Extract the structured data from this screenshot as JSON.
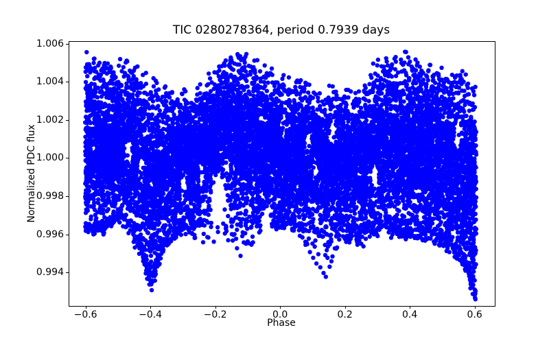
{
  "figure": {
    "background": "#ffffff",
    "text_color": "#000000"
  },
  "chart_data": {
    "type": "scatter",
    "title": "TIC 0280278364, period 0.7939 days",
    "xlabel": "Phase",
    "ylabel": "Normalized PDC flux",
    "xlim": [
      -0.652,
      0.66
    ],
    "ylim": [
      0.99227,
      1.00614
    ],
    "grid": false,
    "legend_position": "none",
    "marker": {
      "color": "#0000ff",
      "radius_px": 3.2,
      "shape": "circle"
    },
    "xticks": [
      {
        "v": -0.6,
        "label": "−0.6"
      },
      {
        "v": -0.4,
        "label": "−0.4"
      },
      {
        "v": -0.2,
        "label": "−0.2"
      },
      {
        "v": 0.0,
        "label": "0.0"
      },
      {
        "v": 0.2,
        "label": "0.2"
      },
      {
        "v": 0.4,
        "label": "0.4"
      },
      {
        "v": 0.6,
        "label": "0.6"
      }
    ],
    "yticks": [
      {
        "v": 0.994,
        "label": "0.994"
      },
      {
        "v": 0.996,
        "label": "0.996"
      },
      {
        "v": 0.998,
        "label": "0.998"
      },
      {
        "v": 1.0,
        "label": "1.000"
      },
      {
        "v": 1.002,
        "label": "1.002"
      },
      {
        "v": 1.004,
        "label": "1.004"
      },
      {
        "v": 1.006,
        "label": "1.006"
      }
    ],
    "phase_range": [
      -0.603,
      0.603
    ],
    "n_points": 13000,
    "seed": 42,
    "fractions": {
      "band": 0.87,
      "below_band": 0.09,
      "above_band": 0.04
    },
    "jitter_sigma": 0.00022,
    "envelopes": {
      "phases": [
        -0.603,
        -0.58,
        -0.55,
        -0.5,
        -0.47,
        -0.44,
        -0.42,
        -0.4,
        -0.38,
        -0.36,
        -0.33,
        -0.3,
        -0.27,
        -0.24,
        -0.21,
        -0.18,
        -0.15,
        -0.12,
        -0.09,
        -0.06,
        -0.03,
        0.0,
        0.03,
        0.06,
        0.09,
        0.12,
        0.15,
        0.18,
        0.21,
        0.24,
        0.27,
        0.3,
        0.33,
        0.36,
        0.4,
        0.44,
        0.48,
        0.52,
        0.55,
        0.57,
        0.59,
        0.603
      ],
      "upper": [
        1.0044,
        1.0043,
        1.0042,
        1.0043,
        1.0042,
        1.0038,
        1.0035,
        1.0033,
        1.0031,
        1.0029,
        1.0027,
        1.0026,
        1.0023,
        1.0032,
        1.004,
        1.0044,
        1.0046,
        1.0046,
        1.0043,
        1.004,
        1.0037,
        1.0035,
        1.0034,
        1.0033,
        1.0031,
        1.0029,
        1.0027,
        1.0026,
        1.0027,
        1.0029,
        1.0034,
        1.004,
        1.0043,
        1.0045,
        1.0044,
        1.0042,
        1.0039,
        1.0037,
        1.0036,
        1.0034,
        1.0032,
        1.0031
      ],
      "band_bottom": [
        0.9966,
        0.9965,
        0.9966,
        0.9972,
        0.997,
        0.9962,
        0.995,
        0.9938,
        0.995,
        0.9958,
        0.9964,
        0.9968,
        0.997,
        0.9974,
        0.9982,
        0.9985,
        0.9982,
        0.9976,
        0.9974,
        0.9972,
        0.9971,
        0.997,
        0.9969,
        0.9969,
        0.9971,
        0.9972,
        0.9966,
        0.9967,
        0.9966,
        0.9965,
        0.9967,
        0.9971,
        0.9969,
        0.9967,
        0.9966,
        0.9966,
        0.9963,
        0.9959,
        0.9953,
        0.9947,
        0.9937,
        0.993
      ],
      "sparse_low": [
        0.9961,
        0.996,
        0.9959,
        0.9966,
        0.996,
        0.995,
        0.9941,
        0.9931,
        0.9941,
        0.995,
        0.9957,
        0.9959,
        0.9955,
        0.995,
        0.9951,
        0.995,
        0.995,
        0.9949,
        0.9952,
        0.9958,
        0.9961,
        0.9962,
        0.996,
        0.9956,
        0.995,
        0.9943,
        0.994,
        0.9952,
        0.9955,
        0.9953,
        0.9955,
        0.9958,
        0.9957,
        0.9956,
        0.9956,
        0.9956,
        0.9954,
        0.995,
        0.9944,
        0.994,
        0.9931,
        0.9926
      ]
    },
    "voids": [
      {
        "x": -0.47,
        "y": 1.0002,
        "rx": 0.013,
        "ry": 0.0008
      },
      {
        "x": -0.43,
        "y": 0.9994,
        "rx": 0.011,
        "ry": 0.0007
      },
      {
        "x": -0.3,
        "y": 0.9986,
        "rx": 0.012,
        "ry": 0.0009
      },
      {
        "x": -0.245,
        "y": 0.9991,
        "rx": 0.009,
        "ry": 0.0007
      },
      {
        "x": -0.19,
        "y": 0.9977,
        "rx": 0.026,
        "ry": 0.0013
      },
      {
        "x": -0.165,
        "y": 0.9995,
        "rx": 0.01,
        "ry": 0.0006
      },
      {
        "x": -0.045,
        "y": 0.9964,
        "rx": 0.018,
        "ry": 0.0008
      },
      {
        "x": 0.005,
        "y": 1.0016,
        "rx": 0.008,
        "ry": 0.0006
      },
      {
        "x": 0.085,
        "y": 1.0008,
        "rx": 0.01,
        "ry": 0.0007
      },
      {
        "x": 0.105,
        "y": 0.9995,
        "rx": 0.01,
        "ry": 0.0007
      },
      {
        "x": 0.16,
        "y": 1.0014,
        "rx": 0.01,
        "ry": 0.0007
      },
      {
        "x": 0.29,
        "y": 0.9989,
        "rx": 0.012,
        "ry": 0.0008
      },
      {
        "x": 0.545,
        "y": 1.0012,
        "rx": 0.011,
        "ry": 0.0009
      }
    ],
    "outliers": [
      [
        -0.59,
        1.0049
      ],
      [
        -0.575,
        1.0046
      ],
      [
        -0.545,
        1.0049
      ],
      [
        -0.515,
        1.0044
      ],
      [
        -0.49,
        1.0046
      ],
      [
        -0.335,
        1.0035
      ],
      [
        -0.155,
        1.0048
      ],
      [
        -0.143,
        1.005
      ],
      [
        -0.106,
        1.0055
      ],
      [
        0.005,
        1.0042
      ],
      [
        0.007,
        1.0039
      ],
      [
        0.16,
        1.0038
      ],
      [
        0.285,
        1.005
      ],
      [
        0.3,
        1.0052
      ],
      [
        0.33,
        1.0049
      ],
      [
        0.355,
        1.0051
      ],
      [
        0.42,
        1.0049
      ],
      [
        0.455,
        1.0046
      ],
      [
        0.56,
        1.0046
      ],
      [
        -0.412,
        0.9937
      ],
      [
        -0.405,
        0.9934
      ],
      [
        -0.398,
        0.9931
      ],
      [
        -0.388,
        0.9936
      ],
      [
        -0.135,
        0.9953
      ],
      [
        -0.124,
        0.9949
      ],
      [
        -0.02,
        0.9965
      ],
      [
        0.09,
        0.9951
      ],
      [
        0.1,
        0.9948
      ],
      [
        0.11,
        0.9945
      ],
      [
        0.122,
        0.9943
      ],
      [
        0.132,
        0.994
      ],
      [
        0.139,
        0.9938
      ],
      [
        0.235,
        0.9957
      ],
      [
        0.255,
        0.9954
      ],
      [
        0.445,
        0.9957
      ],
      [
        0.52,
        0.9951
      ],
      [
        0.585,
        0.9932
      ],
      [
        0.592,
        0.9929
      ],
      [
        0.599,
        0.9927
      ]
    ]
  }
}
